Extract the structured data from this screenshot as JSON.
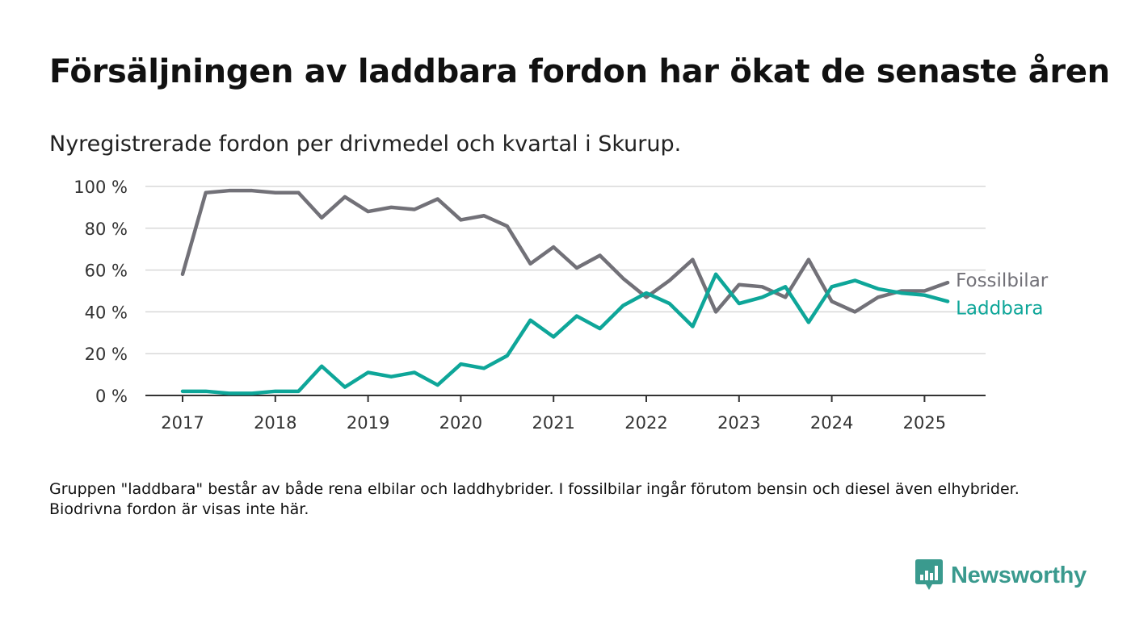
{
  "title": "Försäljningen av laddbara fordon har ökat de senaste åren",
  "subtitle": "Nyregistrerade fordon per drivmedel och kvartal i Skurup.",
  "footnote": "Gruppen \"laddbara\" består av både rena elbilar och laddhybrider. I fossilbilar ingår förutom bensin och diesel även elhybrider. Biodrivna fordon är visas inte här.",
  "brand": {
    "name": "Newsworthy",
    "icon": "newsworthy-logo-icon",
    "color": "#3a9a8e"
  },
  "chart_data": {
    "type": "line",
    "title": "",
    "xlabel": "",
    "ylabel": "",
    "ylim": [
      0,
      100
    ],
    "y_ticks": [
      0,
      20,
      40,
      60,
      80,
      100
    ],
    "y_tick_labels": [
      "0 %",
      "20 %",
      "40 %",
      "60 %",
      "80 %",
      "100 %"
    ],
    "x_ticks": [
      "2017",
      "2018",
      "2019",
      "2020",
      "2021",
      "2022",
      "2023",
      "2024",
      "2025"
    ],
    "grid": true,
    "legend": "direct labels at line ends",
    "x": [
      "2017-Q1",
      "2017-Q2",
      "2017-Q3",
      "2017-Q4",
      "2018-Q1",
      "2018-Q2",
      "2018-Q3",
      "2018-Q4",
      "2019-Q1",
      "2019-Q2",
      "2019-Q3",
      "2019-Q4",
      "2020-Q1",
      "2020-Q2",
      "2020-Q3",
      "2020-Q4",
      "2021-Q1",
      "2021-Q2",
      "2021-Q3",
      "2021-Q4",
      "2022-Q1",
      "2022-Q2",
      "2022-Q3",
      "2022-Q4",
      "2023-Q1",
      "2023-Q2",
      "2023-Q3",
      "2023-Q4",
      "2024-Q1",
      "2024-Q2",
      "2024-Q3",
      "2024-Q4",
      "2025-Q1",
      "2025-Q2"
    ],
    "series": [
      {
        "name": "Fossilbilar",
        "color": "#727178",
        "values": [
          58,
          97,
          98,
          98,
          97,
          97,
          85,
          95,
          88,
          90,
          89,
          94,
          84,
          86,
          81,
          63,
          71,
          61,
          67,
          56,
          47,
          55,
          65,
          40,
          53,
          52,
          47,
          65,
          45,
          40,
          47,
          50,
          50,
          54
        ]
      },
      {
        "name": "Laddbara",
        "color": "#0ea699",
        "values": [
          2,
          2,
          1,
          1,
          2,
          2,
          14,
          4,
          11,
          9,
          11,
          5,
          15,
          13,
          19,
          36,
          28,
          38,
          32,
          43,
          49,
          44,
          33,
          58,
          44,
          47,
          52,
          35,
          52,
          55,
          51,
          49,
          48,
          45
        ]
      }
    ]
  }
}
